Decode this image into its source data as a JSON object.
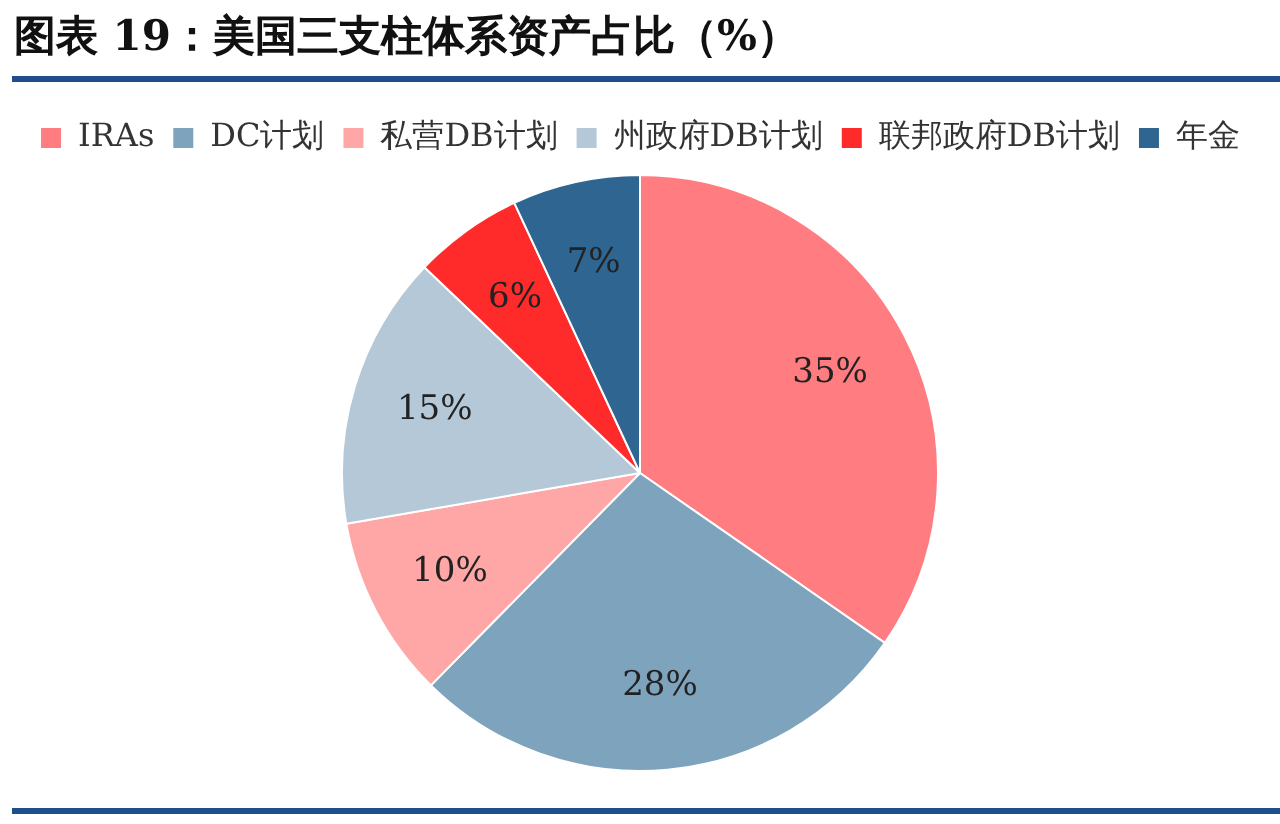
{
  "chart_data": {
    "type": "pie",
    "title": "图表 19：美国三支柱体系资产占比（%）",
    "categories": [
      "IRAs",
      "DC计划",
      "私营DB计划",
      "州政府DB计划",
      "联邦政府DB计划",
      "年金"
    ],
    "values": [
      35,
      28,
      10,
      15,
      6,
      7
    ],
    "colors": [
      "#ff7c80",
      "#7ea3bd",
      "#ffa7a7",
      "#b4c8d8",
      "#ff2b2b",
      "#2e6591"
    ],
    "value_labels": [
      "35%",
      "28%",
      "10%",
      "15%",
      "6%",
      "7%"
    ],
    "legend": "top"
  }
}
